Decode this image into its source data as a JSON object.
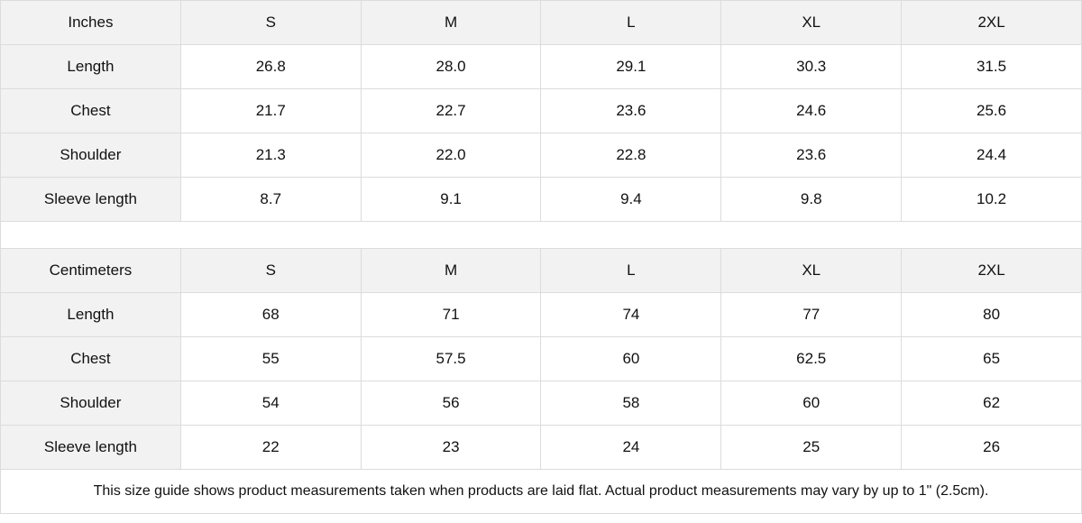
{
  "tables": [
    {
      "unit_label": "Inches",
      "sizes": [
        "S",
        "M",
        "L",
        "XL",
        "2XL"
      ],
      "rows": [
        {
          "label": "Length",
          "values": [
            "26.8",
            "28.0",
            "29.1",
            "30.3",
            "31.5"
          ]
        },
        {
          "label": "Chest",
          "values": [
            "21.7",
            "22.7",
            "23.6",
            "24.6",
            "25.6"
          ]
        },
        {
          "label": "Shoulder",
          "values": [
            "21.3",
            "22.0",
            "22.8",
            "23.6",
            "24.4"
          ]
        },
        {
          "label": "Sleeve length",
          "values": [
            "8.7",
            "9.1",
            "9.4",
            "9.8",
            "10.2"
          ]
        }
      ]
    },
    {
      "unit_label": "Centimeters",
      "sizes": [
        "S",
        "M",
        "L",
        "XL",
        "2XL"
      ],
      "rows": [
        {
          "label": "Length",
          "values": [
            "68",
            "71",
            "74",
            "77",
            "80"
          ]
        },
        {
          "label": "Chest",
          "values": [
            "55",
            "57.5",
            "60",
            "62.5",
            "65"
          ]
        },
        {
          "label": "Shoulder",
          "values": [
            "54",
            "56",
            "58",
            "60",
            "62"
          ]
        },
        {
          "label": "Sleeve length",
          "values": [
            "22",
            "23",
            "24",
            "25",
            "26"
          ]
        }
      ]
    }
  ],
  "footnote": "This size guide shows product measurements taken when products are laid flat.  Actual product measurements may vary by up to 1\" (2.5cm).",
  "colors": {
    "header_bg": "#f2f2f2",
    "border": "#dcdcdc"
  }
}
